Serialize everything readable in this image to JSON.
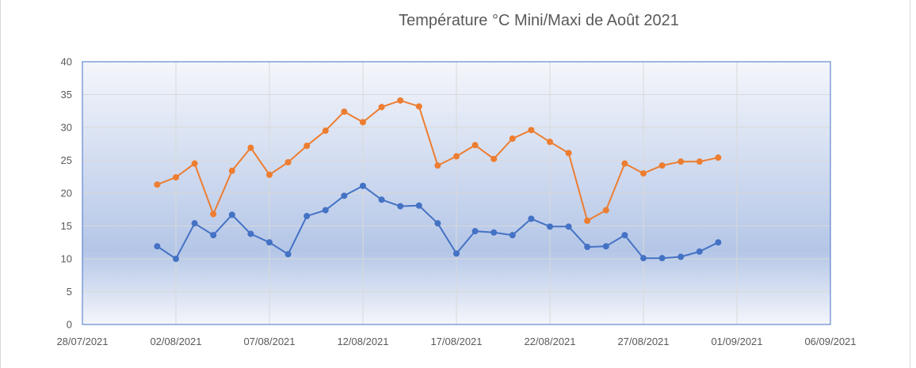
{
  "chart_data": {
    "type": "line",
    "title": "Température °C Mini/Maxi de Août 2021",
    "xlabel": "",
    "ylabel": "",
    "ylim": [
      0,
      40
    ],
    "y_ticks": [
      "0",
      "5",
      "10",
      "15",
      "20",
      "25",
      "30",
      "35",
      "40"
    ],
    "xlim": [
      "2021-07-28",
      "2021-09-06"
    ],
    "x_ticks": [
      {
        "date": "2021-07-28",
        "label": "28/07/2021"
      },
      {
        "date": "2021-08-02",
        "label": "02/08/2021"
      },
      {
        "date": "2021-08-07",
        "label": "07/08/2021"
      },
      {
        "date": "2021-08-12",
        "label": "12/08/2021"
      },
      {
        "date": "2021-08-17",
        "label": "17/08/2021"
      },
      {
        "date": "2021-08-22",
        "label": "22/08/2021"
      },
      {
        "date": "2021-08-27",
        "label": "27/08/2021"
      },
      {
        "date": "2021-09-01",
        "label": "01/09/2021"
      },
      {
        "date": "2021-09-06",
        "label": "06/09/2021"
      }
    ],
    "grid": true,
    "legend": "none",
    "x": [
      "2021-08-01",
      "2021-08-02",
      "2021-08-03",
      "2021-08-04",
      "2021-08-05",
      "2021-08-06",
      "2021-08-07",
      "2021-08-08",
      "2021-08-09",
      "2021-08-10",
      "2021-08-11",
      "2021-08-12",
      "2021-08-13",
      "2021-08-14",
      "2021-08-15",
      "2021-08-16",
      "2021-08-17",
      "2021-08-18",
      "2021-08-19",
      "2021-08-20",
      "2021-08-21",
      "2021-08-22",
      "2021-08-23",
      "2021-08-24",
      "2021-08-25",
      "2021-08-26",
      "2021-08-27",
      "2021-08-28",
      "2021-08-29",
      "2021-08-30",
      "2021-08-31"
    ],
    "series": [
      {
        "color": "#ed7d31",
        "values": [
          21.3,
          22.4,
          24.5,
          16.8,
          23.4,
          26.9,
          22.8,
          24.7,
          27.2,
          29.5,
          32.4,
          30.8,
          33.1,
          34.1,
          33.2,
          24.2,
          25.6,
          27.3,
          25.2,
          28.3,
          29.6,
          27.8,
          26.1,
          15.8,
          17.4,
          24.5,
          23.0,
          24.2,
          24.8,
          24.8,
          25.4
        ]
      },
      {
        "color": "#4472c4",
        "values": [
          11.9,
          10.0,
          15.4,
          13.6,
          16.7,
          13.8,
          12.5,
          10.7,
          16.5,
          17.4,
          19.6,
          21.1,
          19.0,
          18.0,
          18.1,
          15.4,
          10.8,
          14.2,
          14.0,
          13.6,
          16.1,
          14.9,
          14.9,
          11.8,
          11.9,
          13.6,
          10.1,
          10.1,
          10.3,
          11.1,
          12.5
        ]
      }
    ],
    "colors": {
      "plot_bg_top": "#f4f6fb",
      "plot_bg_bottom": "#b4c6e7",
      "plot_border": "#4472c4",
      "gridline": "#d9d9d9",
      "text": "#595959"
    }
  }
}
